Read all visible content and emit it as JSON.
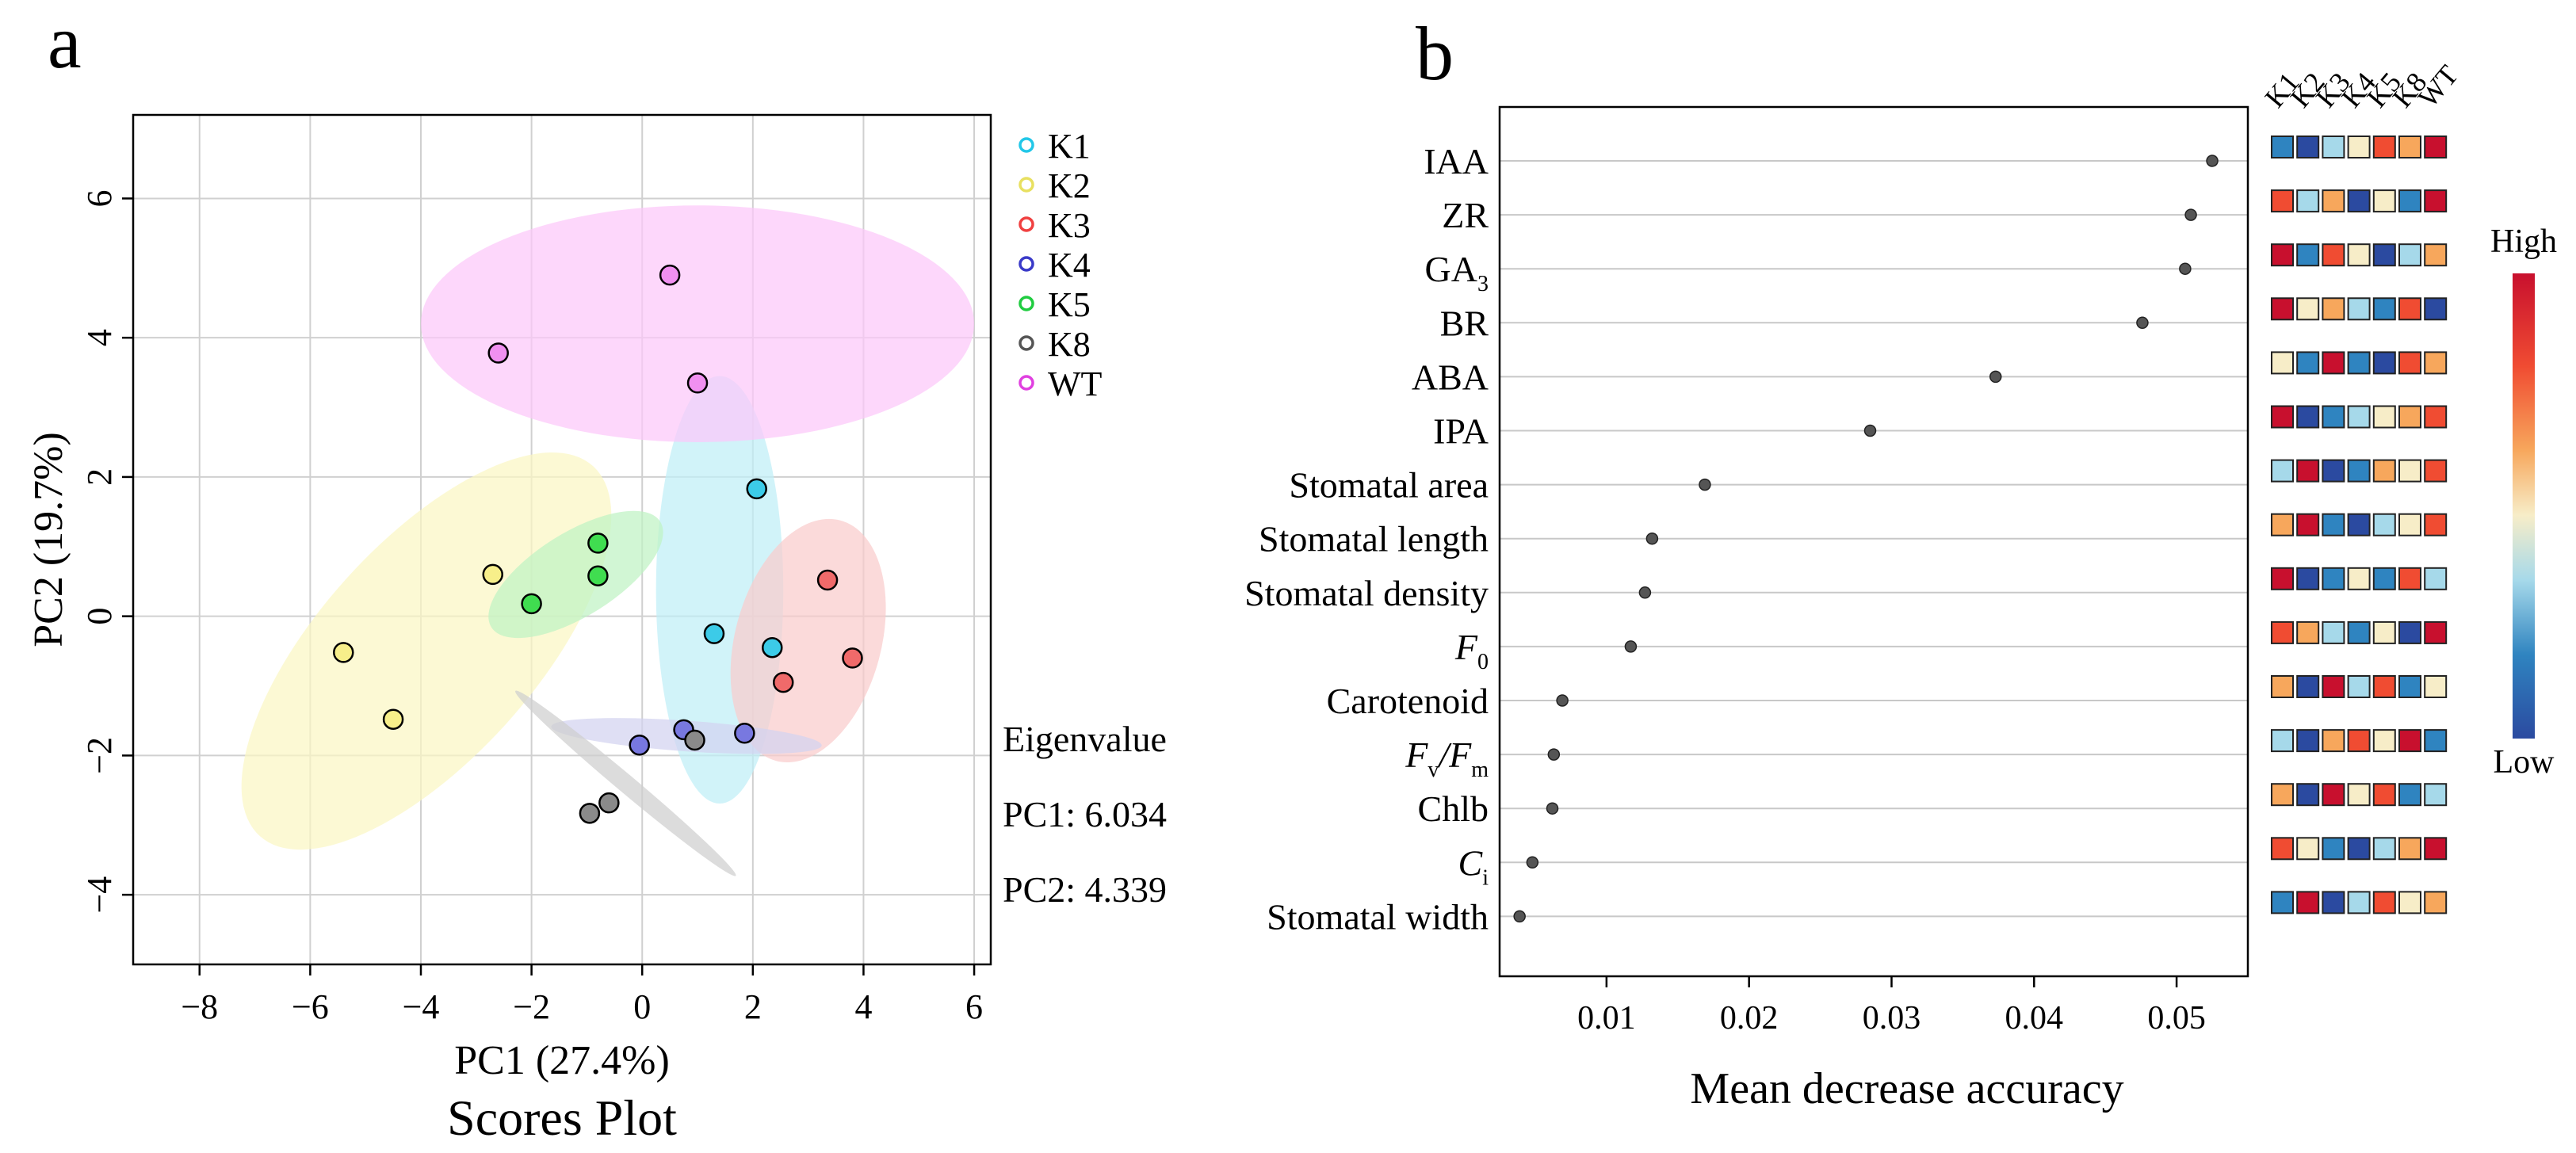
{
  "panel_a_label": "a",
  "panel_b_label": "b",
  "chart_data": [
    {
      "type": "scatter",
      "title": "Scores Plot",
      "xlabel": "PC1 (27.4%)",
      "ylabel": "PC2 (19.7%)",
      "xlim": [
        -9.2,
        6.3
      ],
      "ylim": [
        -5.0,
        7.2
      ],
      "xticks": [
        -8,
        -6,
        -4,
        -2,
        0,
        2,
        4,
        6
      ],
      "yticks": [
        -4,
        -2,
        0,
        2,
        4,
        6
      ],
      "grid": true,
      "legend_position": "right",
      "eigen": {
        "title": "Eigenvalue",
        "pc1": "PC1: 6.034",
        "pc2": "PC2: 4.339"
      },
      "series": [
        {
          "name": "K1",
          "color": "#22c7e8",
          "fill": "#3ccbe8",
          "ellipse_color": "#bfeef7",
          "ellipse": {
            "cx": 1.4,
            "cy": 0.38,
            "rx": 1.15,
            "ry": 3.07,
            "angle": 0
          },
          "points": [
            [
              2.07,
              1.83
            ],
            [
              1.3,
              -0.25
            ],
            [
              2.35,
              -0.45
            ]
          ]
        },
        {
          "name": "K2",
          "color": "#e8e060",
          "fill": "#f7ef8a",
          "ellipse_color": "#fbf7c4",
          "ellipse": {
            "cx": -3.9,
            "cy": -0.5,
            "rx": 4.5,
            "ry": 1.55,
            "angle": -48
          },
          "points": [
            [
              -2.7,
              0.6
            ],
            [
              -5.4,
              -0.52
            ],
            [
              -4.5,
              -1.48
            ]
          ]
        },
        {
          "name": "K3",
          "color": "#f04040",
          "fill": "#f06a6a",
          "ellipse_color": "#f9cccc",
          "ellipse": {
            "cx": 3.0,
            "cy": -0.35,
            "rx": 2.25,
            "ry": 1.05,
            "angle": -75
          },
          "points": [
            [
              3.35,
              0.52
            ],
            [
              3.8,
              -0.6
            ],
            [
              2.55,
              -0.95
            ]
          ]
        },
        {
          "name": "K4",
          "color": "#3a3ac8",
          "fill": "#7878e0",
          "ellipse_color": "#d2d2f0",
          "ellipse": {
            "cx": 0.8,
            "cy": -1.72,
            "rx": 2.45,
            "ry": 0.22,
            "angle": 4
          },
          "points": [
            [
              -0.05,
              -1.85
            ],
            [
              0.75,
              -1.63
            ],
            [
              1.85,
              -1.68
            ]
          ]
        },
        {
          "name": "K5",
          "color": "#20cc40",
          "fill": "#40dd50",
          "ellipse_color": "#bff2c4",
          "ellipse": {
            "cx": -1.2,
            "cy": 0.6,
            "rx": 1.8,
            "ry": 0.6,
            "angle": -32
          },
          "points": [
            [
              -0.8,
              1.05
            ],
            [
              -0.8,
              0.58
            ],
            [
              -2.0,
              0.18
            ]
          ]
        },
        {
          "name": "K8",
          "color": "#555555",
          "fill": "#8a8a8a",
          "ellipse_color": "#cfcfcf",
          "ellipse": {
            "cx": -0.3,
            "cy": -2.4,
            "rx": 2.6,
            "ry": 0.13,
            "angle": 40
          },
          "points": [
            [
              -0.95,
              -2.83
            ],
            [
              -0.6,
              -2.68
            ],
            [
              0.95,
              -1.78
            ]
          ]
        },
        {
          "name": "WT",
          "color": "#e040e0",
          "fill": "#f090f0",
          "ellipse_color": "#fcc8fa",
          "ellipse": {
            "cx": 1.0,
            "cy": 4.2,
            "rx": 5.0,
            "ry": 1.7,
            "angle": 0
          },
          "points": [
            [
              0.5,
              4.9
            ],
            [
              -2.6,
              3.78
            ],
            [
              1.0,
              3.35
            ]
          ]
        }
      ]
    },
    {
      "type": "dot",
      "xlabel": "Mean decrease accuracy",
      "xlim": [
        0.0025,
        0.055
      ],
      "xticks": [
        0.01,
        0.02,
        0.03,
        0.04,
        0.05
      ],
      "xtick_labels": [
        "0.01",
        "0.02",
        "0.03",
        "0.04",
        "0.05"
      ],
      "grid": "horizontal",
      "rows": [
        {
          "label": "IAA",
          "value": 0.0525
        },
        {
          "label": "ZR",
          "value": 0.051
        },
        {
          "label": "GA",
          "sub": "3",
          "value": 0.0506
        },
        {
          "label": "BR",
          "value": 0.0476
        },
        {
          "label": "ABA",
          "value": 0.0373
        },
        {
          "label": "IPA",
          "value": 0.0285
        },
        {
          "label": "Stomatal area",
          "value": 0.0169
        },
        {
          "label": "Stomatal length",
          "value": 0.0132
        },
        {
          "label": "Stomatal density",
          "value": 0.0127
        },
        {
          "label": "F",
          "sub": "0",
          "italic": true,
          "value": 0.0117
        },
        {
          "label": "Carotenoid",
          "value": 0.0069
        },
        {
          "label": "F",
          "sub": "v",
          "label2": "/F",
          "sub2": "m",
          "italic": true,
          "value": 0.0063
        },
        {
          "label": "Chlb",
          "value": 0.0062
        },
        {
          "label": "C",
          "sub": "i",
          "italic": true,
          "value": 0.0048
        },
        {
          "label": "Stomatal width",
          "value": 0.0039
        }
      ],
      "heatmap": {
        "columns": [
          "K1",
          "K2",
          "K3",
          "K4",
          "K5",
          "K8",
          "WT"
        ],
        "palette": [
          "#2b4aa0",
          "#2f84c0",
          "#a6d9ea",
          "#f7edc8",
          "#f7a75c",
          "#f04c32",
          "#c8102e"
        ],
        "values": [
          [
            1,
            0,
            2,
            3,
            5,
            4,
            6
          ],
          [
            5,
            2,
            4,
            0,
            3,
            1,
            6
          ],
          [
            6,
            1,
            5,
            3,
            0,
            2,
            4
          ],
          [
            6,
            3,
            4,
            2,
            1,
            5,
            0
          ],
          [
            3,
            1,
            6,
            1,
            0,
            5,
            4
          ],
          [
            6,
            0,
            1,
            2,
            3,
            4,
            5
          ],
          [
            2,
            6,
            0,
            1,
            4,
            3,
            5
          ],
          [
            4,
            6,
            1,
            0,
            2,
            3,
            5
          ],
          [
            6,
            0,
            1,
            3,
            1,
            5,
            2
          ],
          [
            5,
            4,
            2,
            1,
            3,
            0,
            6
          ],
          [
            4,
            0,
            6,
            2,
            5,
            1,
            3
          ],
          [
            2,
            0,
            4,
            5,
            3,
            6,
            1
          ],
          [
            4,
            0,
            6,
            3,
            5,
            1,
            2
          ],
          [
            5,
            3,
            1,
            0,
            2,
            4,
            6
          ],
          [
            1,
            6,
            0,
            2,
            5,
            3,
            4
          ]
        ],
        "legend_high": "High",
        "legend_low": "Low"
      }
    }
  ]
}
